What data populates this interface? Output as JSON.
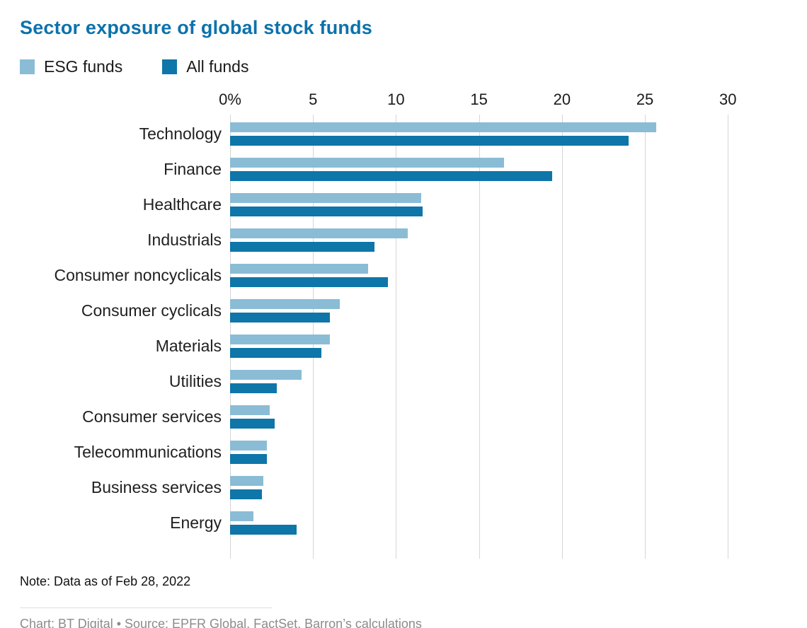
{
  "title": "Sector exposure of global stock funds",
  "legend": [
    {
      "label": "ESG funds",
      "color": "#8abcd6"
    },
    {
      "label": "All funds",
      "color": "#0e76a8"
    }
  ],
  "note": "Note: Data as of Feb 28, 2022",
  "credit": "Chart: BT Digital • Source: EPFR Global, FactSet, Barron’s calculations",
  "chart_data": {
    "type": "bar",
    "orientation": "horizontal",
    "title": "Sector exposure of global stock funds",
    "categories": [
      "Technology",
      "Finance",
      "Healthcare",
      "Industrials",
      "Consumer noncyclicals",
      "Consumer cyclicals",
      "Materials",
      "Utilities",
      "Consumer services",
      "Telecommunications",
      "Business services",
      "Energy"
    ],
    "series": [
      {
        "name": "ESG funds",
        "color": "#8abcd6",
        "values": [
          25.7,
          16.5,
          11.5,
          10.7,
          8.3,
          6.6,
          6.0,
          4.3,
          2.4,
          2.2,
          2.0,
          1.4
        ]
      },
      {
        "name": "All funds",
        "color": "#0e76a8",
        "values": [
          24.0,
          19.4,
          11.6,
          8.7,
          9.5,
          6.0,
          5.5,
          2.8,
          2.7,
          2.2,
          1.9,
          4.0
        ]
      }
    ],
    "x_ticks": [
      0,
      5,
      10,
      15,
      20,
      25,
      30
    ],
    "x_tick_labels": [
      "0%",
      "5",
      "10",
      "15",
      "20",
      "25",
      "30"
    ],
    "xlim": [
      0,
      30.5
    ],
    "xlabel": "",
    "ylabel": "",
    "grid": true,
    "legend_position": "top-left"
  }
}
